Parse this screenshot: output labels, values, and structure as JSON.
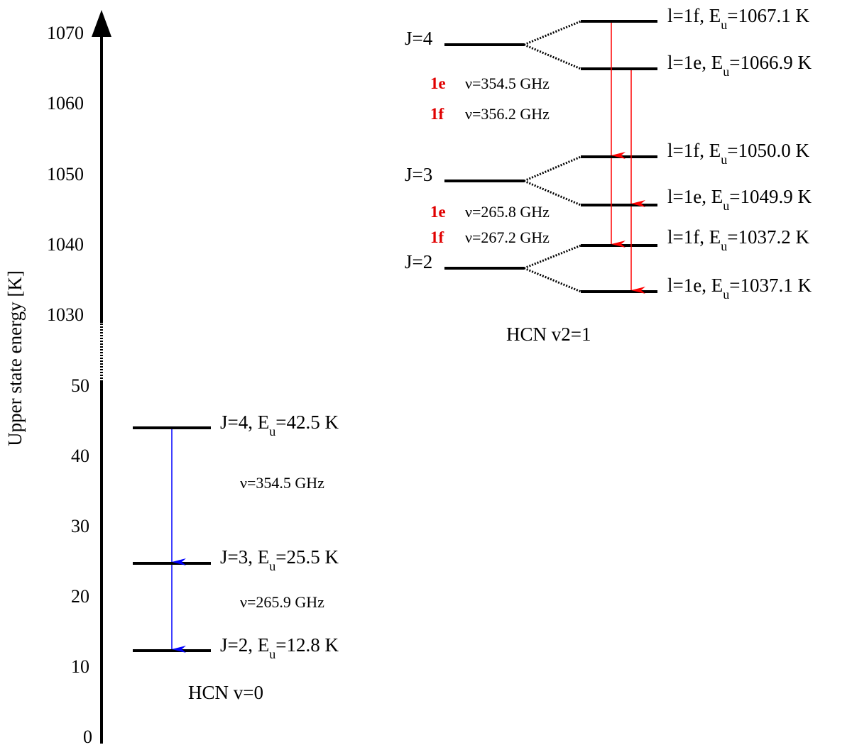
{
  "axis": {
    "label": "Upper state energy [K]",
    "upper_ticks": [
      "1070",
      "1060",
      "1050",
      "1040",
      "1030"
    ],
    "lower_ticks": [
      "50",
      "40",
      "30",
      "20",
      "10",
      "0"
    ]
  },
  "v0": {
    "title": "HCN v=0",
    "levels": [
      {
        "J": "J=4",
        "Eu": "42.5"
      },
      {
        "J": "J=3",
        "Eu": "25.5"
      },
      {
        "J": "J=2",
        "Eu": "12.8"
      }
    ],
    "transitions": [
      "ν=354.5 GHz",
      "ν=265.9 GHz"
    ]
  },
  "v2": {
    "title": "HCN v2=1",
    "J_labels": [
      "J=4",
      "J=3",
      "J=2"
    ],
    "levels": [
      {
        "l": "l=1f",
        "Eu": "1067.1"
      },
      {
        "l": "l=1e",
        "Eu": "1066.9"
      },
      {
        "l": "l=1f",
        "Eu": "1050.0"
      },
      {
        "l": "l=1e",
        "Eu": "1049.9"
      },
      {
        "l": "l=1f",
        "Eu": "1037.2"
      },
      {
        "l": "l=1e",
        "Eu": "1037.1"
      }
    ],
    "transitions": [
      {
        "tag": "1e",
        "freq": "ν=354.5 GHz"
      },
      {
        "tag": "1f",
        "freq": "ν=356.2 GHz"
      },
      {
        "tag": "1e",
        "freq": "ν=265.8 GHz"
      },
      {
        "tag": "1f",
        "freq": "ν=267.2 GHz"
      }
    ]
  },
  "unit": "K",
  "colors": {
    "v0_arrow": "#0000ff",
    "v2_arrow": "#ff0000",
    "tag": "#e00000"
  }
}
